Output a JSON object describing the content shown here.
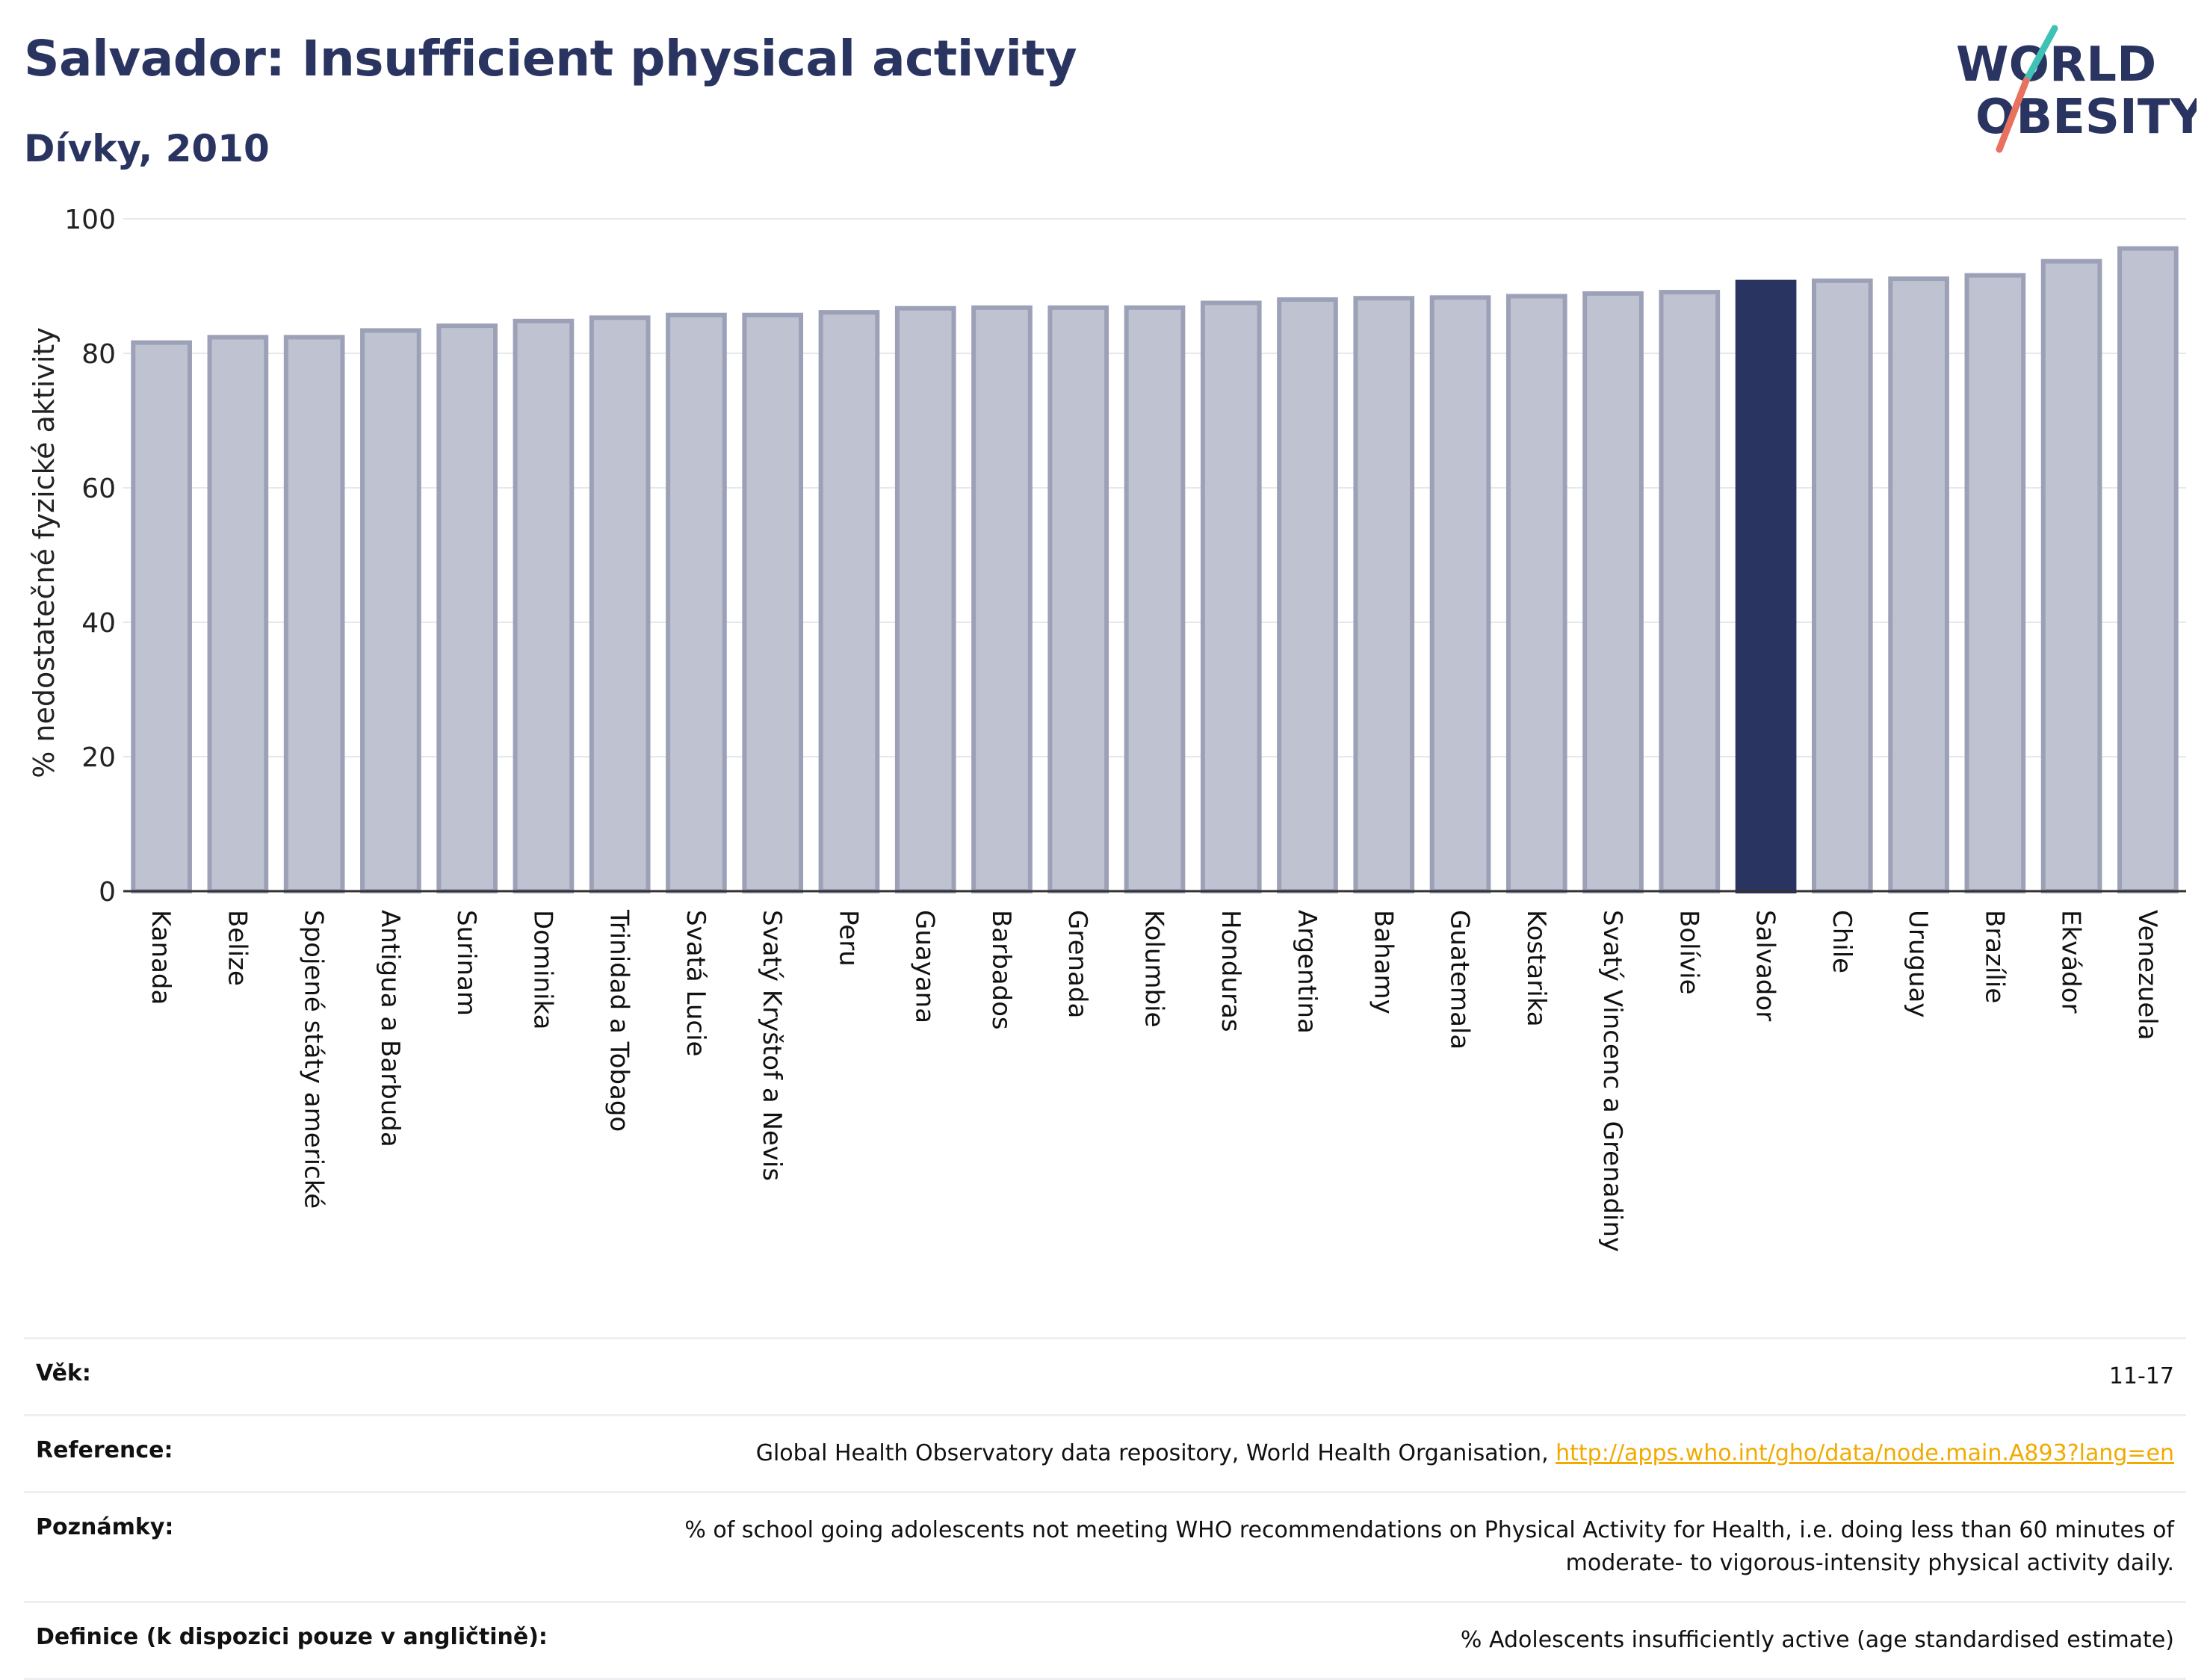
{
  "header": {
    "title": "Salvador: Insufficient physical activity",
    "subtitle": "Dívky, 2010"
  },
  "logo": {
    "line1": "WORLD",
    "line2": "OBESITY"
  },
  "colors": {
    "bar": "#bfc2d0",
    "bar_border": "#9da1b8",
    "highlight": "#2a3460",
    "grid": "#e6e8ee",
    "title": "#2a3460",
    "link": "#f2a900"
  },
  "chart_data": {
    "type": "bar",
    "title": "Salvador: Insufficient physical activity",
    "subtitle": "Dívky, 2010",
    "xlabel": "",
    "ylabel": "% nedostatečné fyzické aktivity",
    "ylim": [
      0,
      100
    ],
    "yticks": [
      0,
      20,
      40,
      60,
      80,
      100
    ],
    "grid": true,
    "highlight": "Salvador",
    "categories": [
      "Kanada",
      "Belize",
      "Spojené státy americké",
      "Antigua a Barbuda",
      "Surinam",
      "Dominika",
      "Trinidad a Tobago",
      "Svatá Lucie",
      "Svatý Kryštof a Nevis",
      "Peru",
      "Guayana",
      "Barbados",
      "Grenada",
      "Kolumbie",
      "Honduras",
      "Argentina",
      "Bahamy",
      "Guatemala",
      "Kostarika",
      "Svatý Vincenc a Grenadiny",
      "Bolívie",
      "Salvador",
      "Chile",
      "Uruguay",
      "Brazílie",
      "Ekvádor",
      "Venezuela"
    ],
    "values": [
      81.6,
      82.4,
      82.4,
      83.4,
      84.1,
      84.8,
      85.3,
      85.7,
      85.7,
      86.1,
      86.7,
      86.8,
      86.8,
      86.8,
      87.5,
      88.0,
      88.2,
      88.3,
      88.5,
      88.9,
      89.1,
      90.6,
      90.8,
      91.1,
      91.6,
      93.7,
      95.6
    ]
  },
  "info": {
    "rows": [
      {
        "label": "Věk:",
        "value": "11-17"
      },
      {
        "label": "Reference:",
        "value": "Global Health Observatory data repository, World Health Organisation, ",
        "link": "http://apps.who.int/gho/data/node.main.A893?lang=en"
      },
      {
        "label": "Poznámky:",
        "value": "% of school going adolescents not meeting WHO recommendations on Physical Activity for Health, i.e. doing less than 60 minutes of moderate- to vigorous-intensity physical activity daily."
      },
      {
        "label": "Definice (k dispozici pouze v angličtině):",
        "value": "% Adolescents insufficiently active (age standardised estimate)"
      }
    ]
  }
}
